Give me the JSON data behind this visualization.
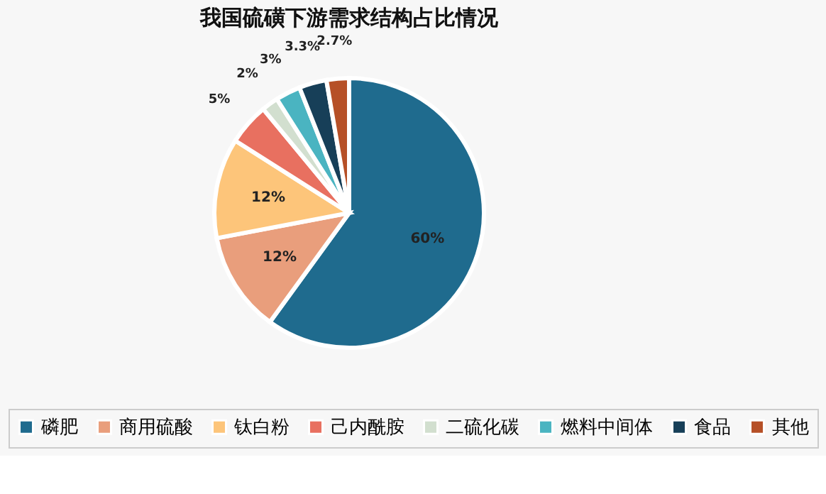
{
  "chart_data": {
    "type": "pie",
    "title": "我国硫磺下游需求结构占比情况",
    "categories": [
      "磷肥",
      "商用硫酸",
      "钛白粉",
      "己内酰胺",
      "二硫化碳",
      "燃料中间体",
      "食品",
      "其他"
    ],
    "values": [
      60,
      12,
      12,
      5,
      2,
      3,
      3.3,
      2.7
    ],
    "colors": [
      "#1f6b8e",
      "#e99e7c",
      "#fdc57a",
      "#e87060",
      "#d2dfcf",
      "#4ab4c1",
      "#173f58",
      "#b65027"
    ],
    "value_labels": [
      "60%",
      "12%",
      "12%",
      "5%",
      "2%",
      "3%",
      "3.3%",
      "2.7%"
    ],
    "legend": "bottom"
  }
}
